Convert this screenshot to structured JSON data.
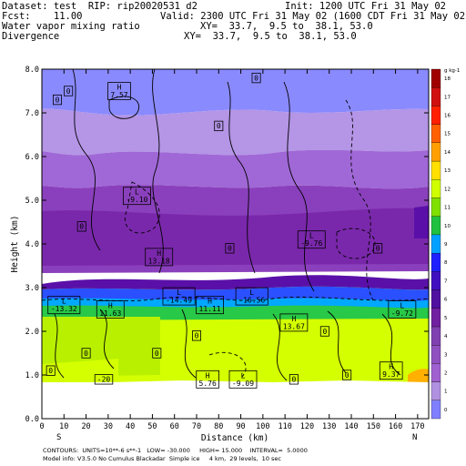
{
  "header": {
    "dataset": "Dataset: test  RIP: rip20020531 d2",
    "init": "Init: 1200 UTC Fri 31 May 02",
    "fcst": "Fcst:    11.00",
    "valid": "Valid: 2300 UTC Fri 31 May 02 (1600 CDT Fri 31 May 02)",
    "field1": "Water vapor mixing ratio",
    "xy1": "XY=  33.7,  9.5 to  38.1, 53.0",
    "field2": "Divergence",
    "xy2": "XY=  33.7,  9.5 to  38.1, 53.0"
  },
  "footer": {
    "line1": "CONTOURS:  UNITS=10**-6 s**-1   LOW= -30.000     HIGH= 15.000    INTERVAL=  5.0000",
    "line2": "Model info: V3.5.0 No Cumulus Blackadar  Simple ice     4 km,  29 levels,  10 sec"
  },
  "chart_data": {
    "type": "heatmap",
    "title": "Water vapor mixing ratio / Divergence",
    "xlabel": "Distance (km)",
    "ylabel": "Height (km)",
    "xlim": [
      0,
      175
    ],
    "ylim": [
      0,
      8
    ],
    "x_ticks": [
      0,
      10,
      20,
      30,
      40,
      50,
      60,
      70,
      80,
      90,
      100,
      110,
      120,
      130,
      140,
      150,
      160,
      170
    ],
    "y_ticks": [
      "0.0",
      "1.0",
      "2.0",
      "3.0",
      "4.0",
      "5.0",
      "6.0",
      "7.0",
      "8.0"
    ],
    "left_end_label": "S",
    "right_end_label": "N",
    "colorbar": {
      "unit_label": "g kg-1",
      "levels": [
        "0",
        "1",
        "2",
        "3",
        "4",
        "5",
        "6",
        "7",
        "8",
        "9",
        "10",
        "11",
        "12",
        "13",
        "14",
        "15",
        "16",
        "17",
        "18"
      ],
      "colors": [
        "#8080ff",
        "#b090e0",
        "#a060d0",
        "#9050c0",
        "#8040b0",
        "#7020a0",
        "#5010a0",
        "#4010c0",
        "#2020ff",
        "#00a0ff",
        "#20c040",
        "#80e000",
        "#d0ff00",
        "#ffe000",
        "#ffa000",
        "#ff6000",
        "#ff2000",
        "#d01010",
        "#a00000"
      ]
    },
    "contour_labels": [
      {
        "text": "H\n7.57",
        "x": 35,
        "y": 7.5
      },
      {
        "text": "0",
        "x": 7,
        "y": 7.3
      },
      {
        "text": "0",
        "x": 12,
        "y": 7.5
      },
      {
        "text": "0",
        "x": 97,
        "y": 7.8
      },
      {
        "text": "0",
        "x": 80,
        "y": 6.7
      },
      {
        "text": "L\n-9.10",
        "x": 43,
        "y": 5.1
      },
      {
        "text": "0",
        "x": 18,
        "y": 4.4
      },
      {
        "text": "L\n-9.76",
        "x": 122,
        "y": 4.1
      },
      {
        "text": "H\n13.18",
        "x": 53,
        "y": 3.7
      },
      {
        "text": "0",
        "x": 85,
        "y": 3.9
      },
      {
        "text": "0",
        "x": 152,
        "y": 3.9
      },
      {
        "text": "L\n-13.32",
        "x": 10,
        "y": 2.6
      },
      {
        "text": "H\n11.63",
        "x": 31,
        "y": 2.5
      },
      {
        "text": "L\n-14.49",
        "x": 62,
        "y": 2.8
      },
      {
        "text": "H\n11.11",
        "x": 76,
        "y": 2.6
      },
      {
        "text": "L\n-16.56",
        "x": 95,
        "y": 2.8
      },
      {
        "text": "L\n-9.72",
        "x": 163,
        "y": 2.5
      },
      {
        "text": "H\n13.67",
        "x": 114,
        "y": 2.2
      },
      {
        "text": "0",
        "x": 70,
        "y": 1.9
      },
      {
        "text": "0",
        "x": 128,
        "y": 2.0
      },
      {
        "text": "0",
        "x": 20,
        "y": 1.5
      },
      {
        "text": "0",
        "x": 52,
        "y": 1.5
      },
      {
        "text": "0",
        "x": 4,
        "y": 1.1
      },
      {
        "text": "-20",
        "x": 28,
        "y": 0.9
      },
      {
        "text": "H\n5.76",
        "x": 75,
        "y": 0.9
      },
      {
        "text": "L\n-9.09",
        "x": 91,
        "y": 0.9
      },
      {
        "text": "0",
        "x": 114,
        "y": 0.9
      },
      {
        "text": "0",
        "x": 138,
        "y": 1.0
      },
      {
        "text": "H\n9.37",
        "x": 158,
        "y": 1.1
      }
    ]
  }
}
